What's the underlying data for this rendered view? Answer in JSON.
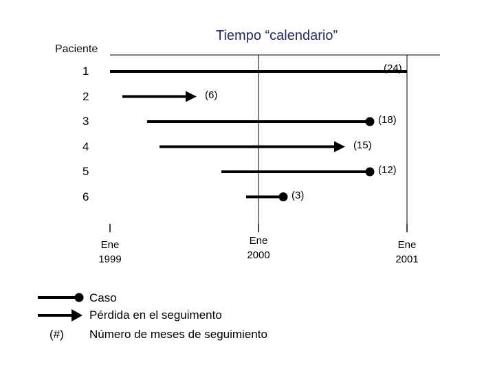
{
  "title": "Tiempo “calendario”",
  "y_axis_label": "Paciente",
  "chart_data": {
    "type": "timeline",
    "x_axis_ticks": [
      {
        "line1": "Ene",
        "line2": "1999",
        "month": 0
      },
      {
        "line1": "Ene",
        "line2": "2000",
        "month": 12
      },
      {
        "line1": "Ene",
        "line2": "2001",
        "month": 24
      }
    ],
    "patients": [
      {
        "id": "1",
        "start_month": 0,
        "end_month": 24,
        "end": "none",
        "follow_up": "(24)"
      },
      {
        "id": "2",
        "start_month": 1,
        "end_month": 7,
        "end": "arrow",
        "follow_up": "(6)"
      },
      {
        "id": "3",
        "start_month": 3,
        "end_month": 21,
        "end": "dot",
        "follow_up": "(18)"
      },
      {
        "id": "4",
        "start_month": 4,
        "end_month": 19,
        "end": "arrow",
        "follow_up": "(15)"
      },
      {
        "id": "5",
        "start_month": 9,
        "end_month": 21,
        "end": "dot",
        "follow_up": "(12)"
      },
      {
        "id": "6",
        "start_month": 11,
        "end_month": 14,
        "end": "dot",
        "follow_up": "(3)"
      }
    ]
  },
  "legend": {
    "case": "Caso",
    "lost": "Pérdida en el seguimento",
    "months_symbol": "(#)",
    "months": "Número de meses de seguimiento"
  }
}
